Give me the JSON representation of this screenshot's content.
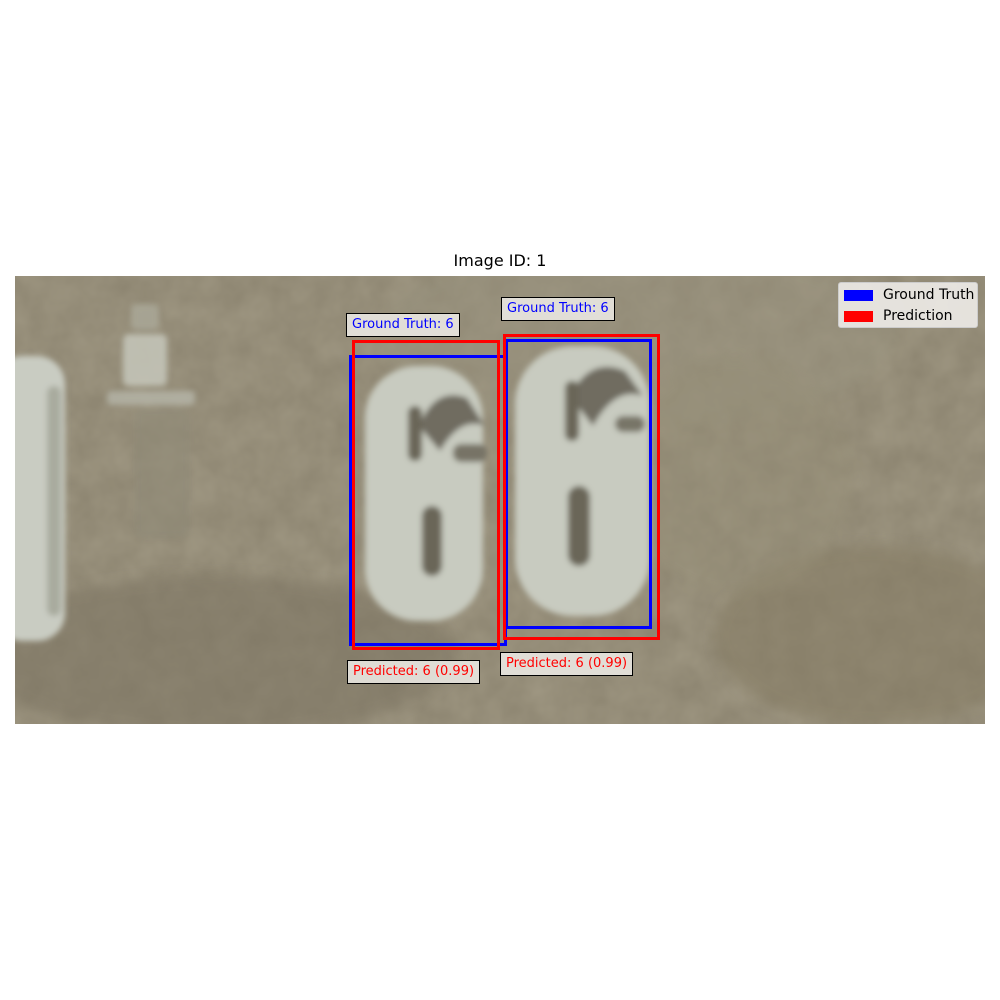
{
  "title": "Image ID: 1",
  "colors": {
    "ground_truth": "#0000ff",
    "prediction": "#ff0000"
  },
  "legend": {
    "ground_truth": "Ground Truth",
    "prediction": "Prediction"
  },
  "detections": [
    {
      "ground_truth_label": "Ground Truth: 6",
      "prediction_label": "Predicted: 6 (0.99)"
    },
    {
      "ground_truth_label": "Ground Truth: 6",
      "prediction_label": "Predicted: 6 (0.99)"
    }
  ]
}
